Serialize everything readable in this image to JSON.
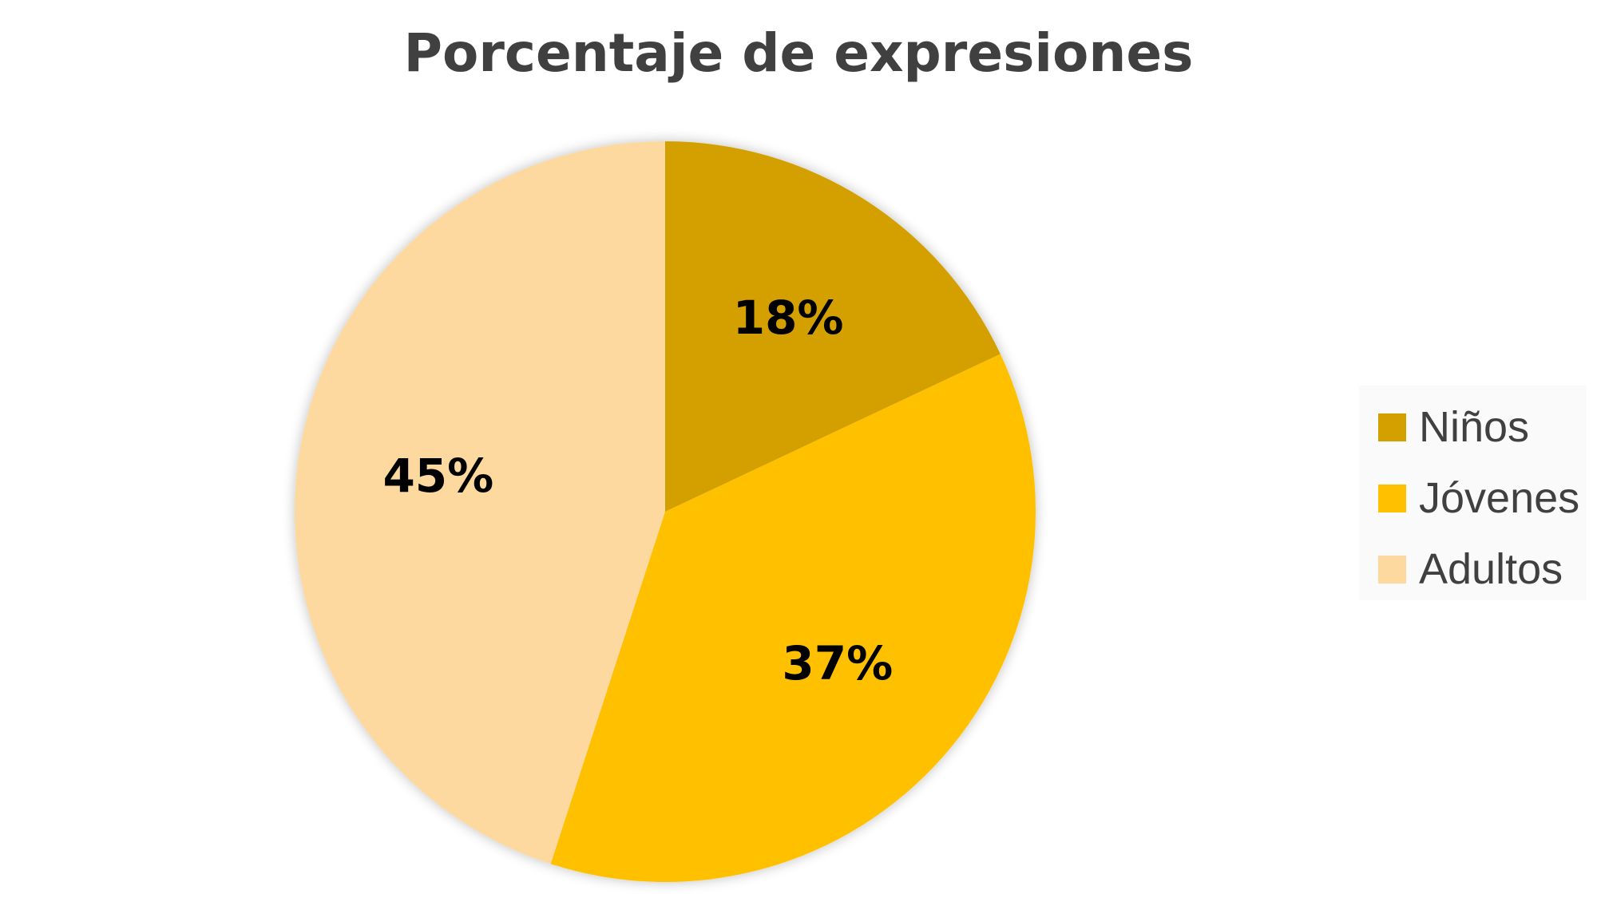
{
  "chart_data": {
    "type": "pie",
    "title": "Porcentaje de expresiones",
    "categories": [
      "Niños",
      "Jóvenes",
      "Adultos"
    ],
    "values": [
      18,
      37,
      45
    ],
    "data_labels": [
      "18%",
      "37%",
      "45%"
    ],
    "colors": [
      "#D4A000",
      "#FFC000",
      "#FDD89F"
    ],
    "start_angle": "top",
    "direction": "clockwise",
    "legend_placement": "right"
  }
}
